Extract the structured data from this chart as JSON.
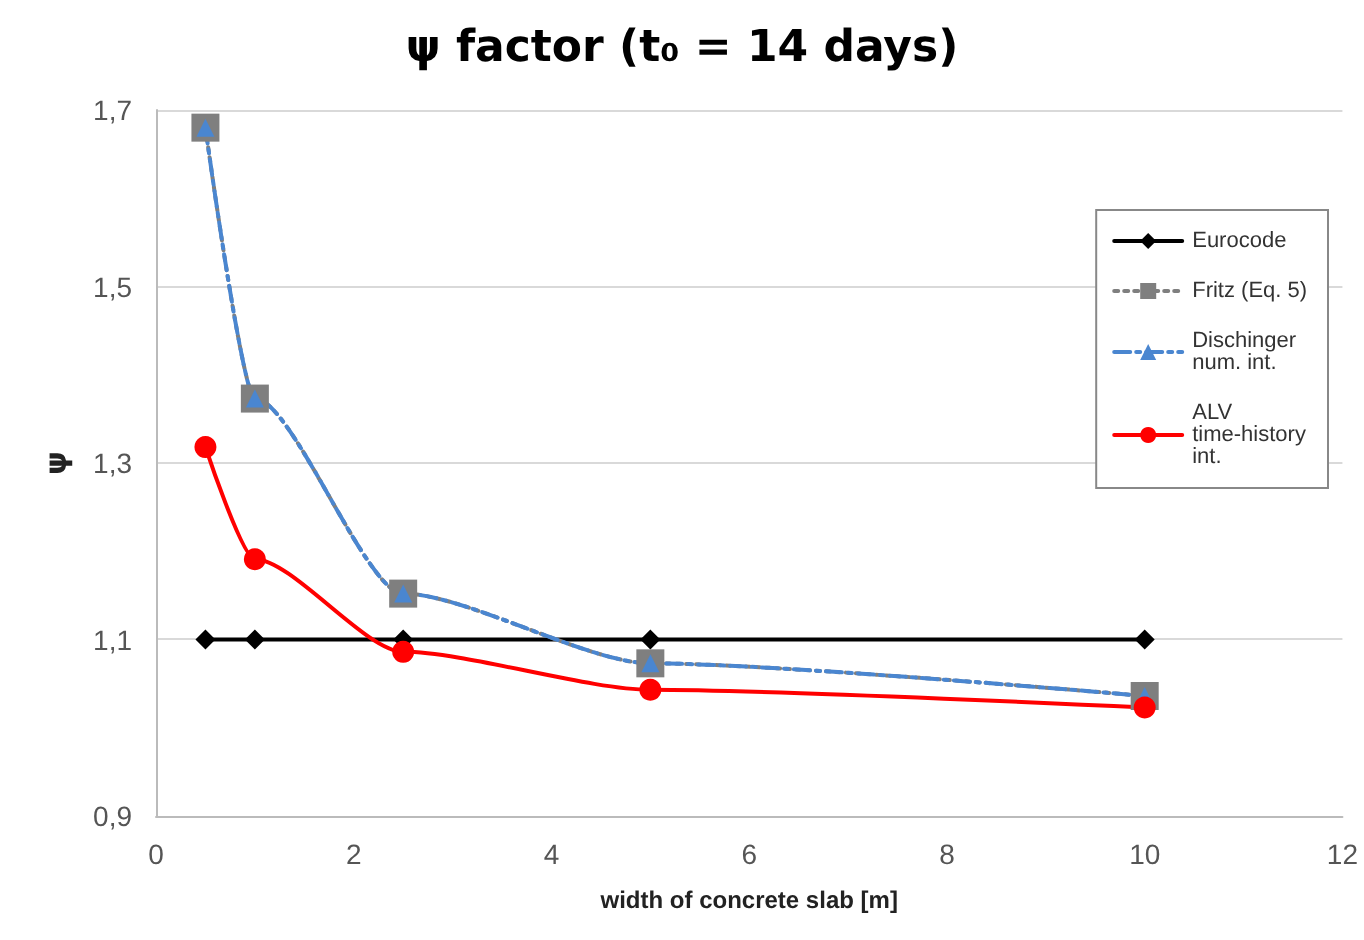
{
  "chart_data": {
    "type": "line",
    "title": "ψ factor (t₀ = 14 days)",
    "xlabel": "width of concrete slab [m]",
    "ylabel": "ψ",
    "x": [
      0.5,
      1,
      2.5,
      5,
      10
    ],
    "series": [
      {
        "name": "Eurocode",
        "color": "#000000",
        "marker": "diamond",
        "line_style": "solid",
        "values": [
          1.1,
          1.1,
          1.1,
          1.1,
          1.1
        ]
      },
      {
        "name": "Fritz (Eq. 5)",
        "color": "#7f7f7f",
        "marker": "square",
        "line_style": "dotted",
        "values": [
          1.68,
          1.373,
          1.152,
          1.073,
          1.036
        ]
      },
      {
        "name": "Dischinger num. int.",
        "color": "#4a86d0",
        "marker": "triangle",
        "line_style": "dashed",
        "values": [
          1.68,
          1.373,
          1.152,
          1.073,
          1.036
        ]
      },
      {
        "name": "ALV time-history int.",
        "color": "#ff0000",
        "marker": "circle",
        "line_style": "solid",
        "values": [
          1.318,
          1.191,
          1.086,
          1.043,
          1.023
        ]
      }
    ],
    "xlim": [
      0,
      12
    ],
    "xticks": [
      0,
      2,
      4,
      6,
      8,
      10,
      12
    ],
    "ylim": [
      0.9,
      1.7
    ],
    "yticks": [
      {
        "value": 0.9,
        "label": "0,9"
      },
      {
        "value": 1.1,
        "label": "1,1"
      },
      {
        "value": 1.3,
        "label": "1,3"
      },
      {
        "value": 1.5,
        "label": "1,5"
      },
      {
        "value": 1.7,
        "label": "1,7"
      }
    ],
    "grid": "y",
    "legend": "right"
  }
}
